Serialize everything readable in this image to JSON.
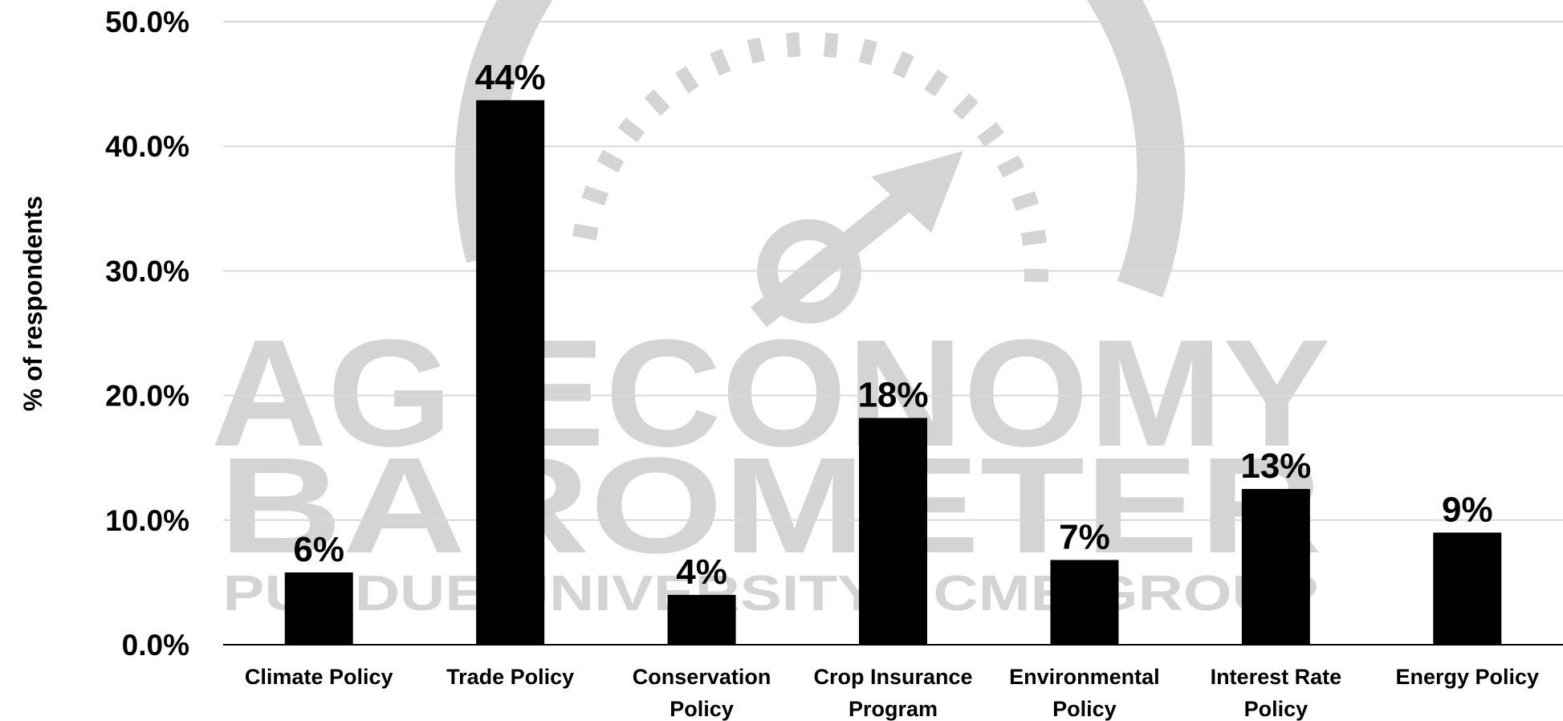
{
  "chart_data": {
    "type": "bar",
    "categories": [
      "Climate Policy",
      "Trade Policy",
      "Conservation Policy",
      "Crop Insurance Program",
      "Environmental Policy",
      "Interest Rate Policy",
      "Energy Policy"
    ],
    "category_lines": [
      [
        "Climate Policy"
      ],
      [
        "Trade Policy"
      ],
      [
        "Conservation",
        "Policy"
      ],
      [
        "Crop Insurance",
        "Program"
      ],
      [
        "Environmental",
        "Policy"
      ],
      [
        "Interest Rate",
        "Policy"
      ],
      [
        "Energy Policy"
      ]
    ],
    "values": [
      5.8,
      43.7,
      4.0,
      18.2,
      6.8,
      12.5,
      9.0
    ],
    "data_labels": [
      "6%",
      "44%",
      "4%",
      "18%",
      "7%",
      "13%",
      "9%"
    ],
    "yticks": [
      0,
      10,
      20,
      30,
      40,
      50
    ],
    "ytick_labels": [
      "0.0%",
      "10.0%",
      "20.0%",
      "30.0%",
      "40.0%",
      "50.0%"
    ],
    "ylabel": "% of respondents",
    "xlabel": "",
    "ylim": [
      0,
      50
    ],
    "grid": true,
    "bar_color": "#000000",
    "grid_color": "#d9d9d9"
  },
  "watermark": {
    "line1": "AG ECONOMY",
    "line2": "BAROMETER",
    "line3": "PURDUE UNIVERSITY · CME GROUP",
    "color": "#d4d4d4"
  }
}
